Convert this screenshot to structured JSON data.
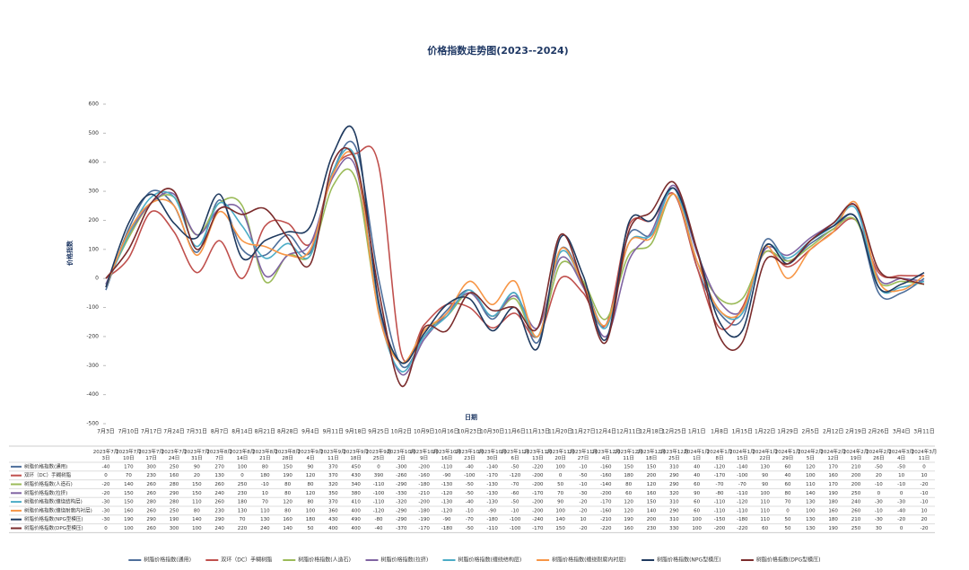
{
  "chart_data": {
    "type": "line",
    "title": "价格指数走势图(2023--2024)",
    "y_label": "价格指数",
    "x_label": "日期",
    "categories": [
      "7月3日",
      "7月10日",
      "7月17日",
      "7月24日",
      "7月31日",
      "8月7日",
      "8月14日",
      "8月21日",
      "8月28日",
      "9月4日",
      "9月11日",
      "9月18日",
      "9月25日",
      "10月2日",
      "10月9日",
      "10月16日",
      "10月23日",
      "10月30日",
      "11月6日",
      "11月13日",
      "11月20日",
      "11月27日",
      "12月4日",
      "12月11日",
      "12月18日",
      "12月25日",
      "1月1日",
      "1月8日",
      "1月15日",
      "1月22日",
      "1月29日",
      "2月5日",
      "2月12日",
      "2月19日",
      "2月26日",
      "3月4日",
      "3月11日"
    ],
    "table_headers": [
      "2023年7月3日",
      "2023年7月10日",
      "2023年7月17日",
      "2023年7月24日",
      "2023年7月31日",
      "2023年8月7日",
      "2023年8月14日",
      "2023年8月21日",
      "2023年8月28日",
      "2023年9月4日",
      "2023年9月11日",
      "2023年9月18日",
      "2023年9月25日",
      "2023年10月2日",
      "2023年10月9日",
      "2023年10月16日",
      "2023年10月23日",
      "2023年10月30日",
      "2023年11月6日",
      "2023年11月13日",
      "2023年11月20日",
      "2023年11月27日",
      "2023年12月4日",
      "2023年12月11日",
      "2023年12月18日",
      "2023年12月25日",
      "2024年1月1日",
      "2024年1月8日",
      "2024年1月15日",
      "2024年1月22日",
      "2024年1月29日",
      "2024年2月5日",
      "2024年2月12日",
      "2024年2月19日",
      "2024年2月26日",
      "2024年3月4日",
      "2024年3月11日"
    ],
    "ylim": [
      -500,
      600
    ],
    "yticks": [
      -500,
      -400,
      -300,
      -200,
      -100,
      0,
      100,
      200,
      300,
      400,
      500,
      600
    ],
    "grid": false,
    "legend": "bottom",
    "series": [
      {
        "name": "树脂价格指数(通用)",
        "color": "#4e6f9b",
        "values": [
          -40,
          170,
          300,
          250,
          90,
          270,
          100,
          80,
          150,
          90,
          370,
          450,
          0,
          -300,
          -200,
          -110,
          -40,
          -140,
          -50,
          -220,
          100,
          -10,
          -160,
          150,
          150,
          310,
          40,
          -120,
          -140,
          130,
          60,
          120,
          170,
          210,
          -50,
          -50,
          0
        ]
      },
      {
        "name": "双环（DC）手糊树脂",
        "color": "#c0504d",
        "values": [
          0,
          70,
          230,
          160,
          20,
          130,
          0,
          180,
          190,
          120,
          370,
          430,
          390,
          -260,
          -160,
          -90,
          -100,
          -170,
          -120,
          -200,
          0,
          -50,
          -160,
          180,
          200,
          290,
          40,
          -170,
          -100,
          90,
          40,
          100,
          160,
          200,
          20,
          10,
          10
        ]
      },
      {
        "name": "树脂价格指数(人造石)",
        "color": "#9bbb59",
        "values": [
          -20,
          140,
          260,
          280,
          150,
          260,
          250,
          -10,
          80,
          80,
          320,
          340,
          -110,
          -290,
          -180,
          -130,
          -50,
          -130,
          -70,
          -200,
          50,
          -10,
          -140,
          80,
          120,
          290,
          60,
          -70,
          -70,
          90,
          60,
          110,
          170,
          200,
          -10,
          -10,
          -20
        ]
      },
      {
        "name": "树脂价格指数(拉挤)",
        "color": "#8064a2",
        "values": [
          -20,
          150,
          260,
          290,
          150,
          240,
          230,
          10,
          80,
          120,
          350,
          380,
          -100,
          -330,
          -210,
          -120,
          -50,
          -130,
          -60,
          -170,
          70,
          -30,
          -200,
          60,
          160,
          320,
          90,
          -80,
          -110,
          100,
          80,
          140,
          190,
          250,
          0,
          0,
          -10
        ]
      },
      {
        "name": "树脂价格指数(缠绕结构层)",
        "color": "#4bacc6",
        "values": [
          -30,
          150,
          280,
          280,
          110,
          260,
          180,
          70,
          120,
          80,
          370,
          410,
          -110,
          -320,
          -200,
          -130,
          -40,
          -130,
          -50,
          -200,
          90,
          -20,
          -170,
          120,
          150,
          310,
          60,
          -110,
          -120,
          110,
          70,
          130,
          180,
          240,
          -30,
          -30,
          -10
        ]
      },
      {
        "name": "树脂价格指数(缠绕耐腐内衬层)",
        "color": "#f79646",
        "values": [
          -30,
          160,
          260,
          250,
          80,
          230,
          130,
          110,
          80,
          100,
          360,
          400,
          -120,
          -290,
          -180,
          -120,
          -10,
          -90,
          -10,
          -200,
          100,
          -20,
          -160,
          120,
          140,
          290,
          60,
          -110,
          -110,
          110,
          0,
          100,
          160,
          260,
          -10,
          -40,
          10
        ]
      },
      {
        "name": "树脂价格指数(NPG型模压)",
        "color": "#1f3a5f",
        "values": [
          -30,
          190,
          290,
          190,
          140,
          290,
          70,
          130,
          160,
          180,
          430,
          490,
          -80,
          -290,
          -190,
          -90,
          -70,
          -180,
          -100,
          -240,
          140,
          10,
          -210,
          190,
          200,
          310,
          100,
          -150,
          -180,
          110,
          50,
          130,
          180,
          210,
          -30,
          -20,
          20
        ]
      },
      {
        "name": "树脂价格指数(DPG型模压)",
        "color": "#7b2c2c",
        "values": [
          0,
          100,
          260,
          300,
          100,
          240,
          220,
          240,
          140,
          50,
          400,
          400,
          -40,
          -370,
          -170,
          -180,
          -50,
          -110,
          -100,
          -170,
          150,
          -20,
          -220,
          160,
          230,
          330,
          100,
          -200,
          -220,
          60,
          50,
          130,
          190,
          250,
          30,
          0,
          -20
        ]
      }
    ]
  }
}
